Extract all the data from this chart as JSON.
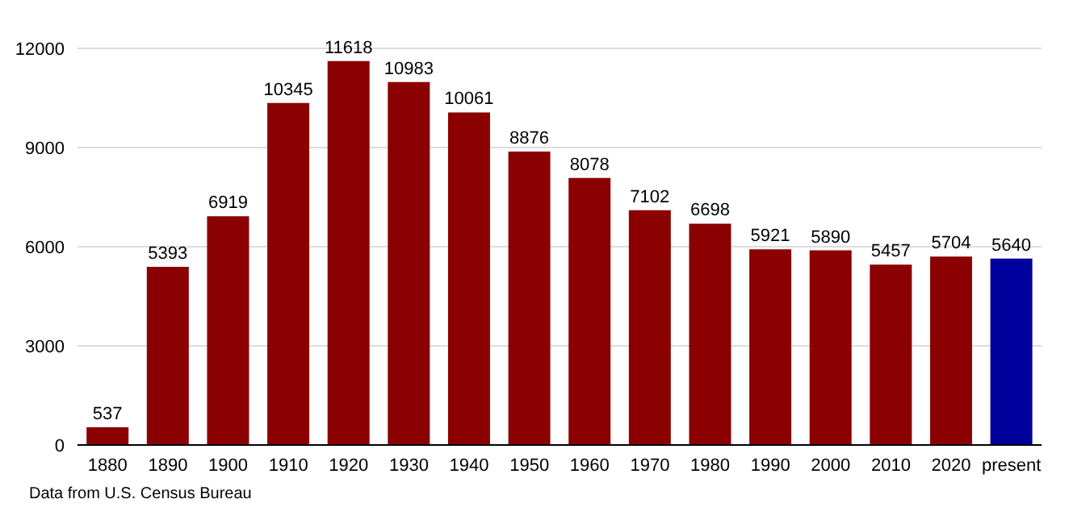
{
  "chart_data": {
    "type": "bar",
    "categories": [
      "1880",
      "1890",
      "1900",
      "1910",
      "1920",
      "1930",
      "1940",
      "1950",
      "1960",
      "1970",
      "1980",
      "1990",
      "2000",
      "2010",
      "2020",
      "present"
    ],
    "values": [
      537,
      5393,
      6919,
      10345,
      11618,
      10983,
      10061,
      8876,
      8078,
      7102,
      6698,
      5921,
      5890,
      5457,
      5704,
      5640
    ],
    "colors": [
      "#8b0000",
      "#8b0000",
      "#8b0000",
      "#8b0000",
      "#8b0000",
      "#8b0000",
      "#8b0000",
      "#8b0000",
      "#8b0000",
      "#8b0000",
      "#8b0000",
      "#8b0000",
      "#8b0000",
      "#8b0000",
      "#8b0000",
      "#00009c"
    ],
    "ylim": [
      0,
      12000
    ],
    "yticks": [
      0,
      3000,
      6000,
      9000,
      12000
    ],
    "grid": "y",
    "data_labels": true,
    "annotations": [
      "Data from U.S. Census Bureau"
    ]
  }
}
